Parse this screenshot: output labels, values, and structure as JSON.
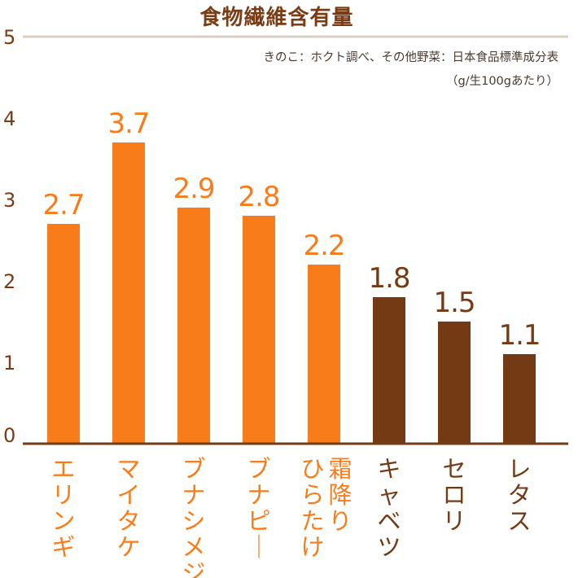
{
  "chart_data": {
    "type": "bar",
    "title": "食物繊維含有量",
    "source_note": "きのこ：ホクト調べ、その他野菜：日本食品標準成分表",
    "unit_note": "（g/生100gあたり）",
    "categories": [
      "エリンギ",
      "マイタケ",
      "ブナシメジ",
      "ブナピー",
      "霜降りひらたけ",
      "キャベツ",
      "セロリ",
      "レタス"
    ],
    "category_lines": [
      [
        "エリンギ"
      ],
      [
        "マイタケ"
      ],
      [
        "ブナシメジ"
      ],
      [
        "ブナピー"
      ],
      [
        "霜降り",
        "ひらたけ"
      ],
      [
        "キャベツ"
      ],
      [
        "セロリ"
      ],
      [
        "レタス"
      ]
    ],
    "values": [
      2.7,
      3.7,
      2.9,
      2.8,
      2.2,
      1.8,
      1.5,
      1.1
    ],
    "value_labels": [
      "2.7",
      "3.7",
      "2.9",
      "2.8",
      "2.2",
      "1.8",
      "1.5",
      "1.1"
    ],
    "groups": [
      "mushroom",
      "mushroom",
      "mushroom",
      "mushroom",
      "mushroom",
      "vegetable",
      "vegetable",
      "vegetable"
    ],
    "ylim": [
      0,
      5
    ],
    "yticks": [
      "0",
      "1",
      "2",
      "3",
      "4",
      "5"
    ],
    "colors": {
      "mushroom": "#f97c1b",
      "vegetable": "#743a14",
      "axis": "#743a14",
      "top_rule": "#d8cfc3",
      "title": "#7a3c14"
    }
  }
}
